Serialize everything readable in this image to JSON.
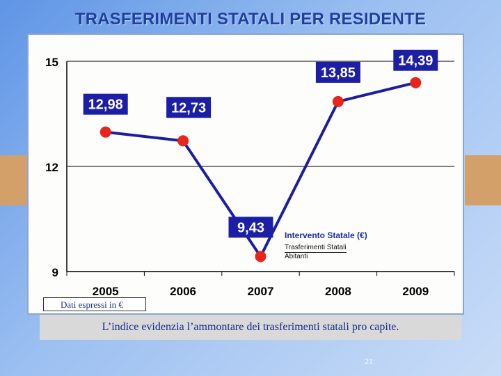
{
  "slide": {
    "title": "TRASFERIMENTI STATALI PER RESIDENTE",
    "unit_note": "Dati espressi in €",
    "caption": "L’indice evidenzia l’ammontare dei trasferimenti statali pro capite.",
    "page_number": "21"
  },
  "colors": {
    "line": "#1b1f9e",
    "point": "#e8251c",
    "label_bg": "#1c1fa6",
    "label_text": "#ffffff",
    "axis": "#000000"
  },
  "chart_data": {
    "type": "line",
    "title": "",
    "categories": [
      "2005",
      "2006",
      "2007",
      "2008",
      "2009"
    ],
    "series": [
      {
        "name": "Intervento Statale (€)",
        "values": [
          12.98,
          12.73,
          9.43,
          13.85,
          14.39
        ]
      }
    ],
    "data_labels": [
      "12,98",
      "12,73",
      "9,43",
      "13,85",
      "14,39"
    ],
    "yticks": [
      "9",
      "12",
      "15"
    ],
    "ytick_values": [
      9,
      12,
      15
    ],
    "ylim": [
      9,
      15
    ],
    "xlabel": "",
    "ylabel": "",
    "grid": "horizontal at 12 and 15",
    "legend": {
      "title": "Intervento Statale",
      "unit": "(€)",
      "numerator": "Trasferimenti Statali",
      "denominator": "Abitanti"
    }
  }
}
